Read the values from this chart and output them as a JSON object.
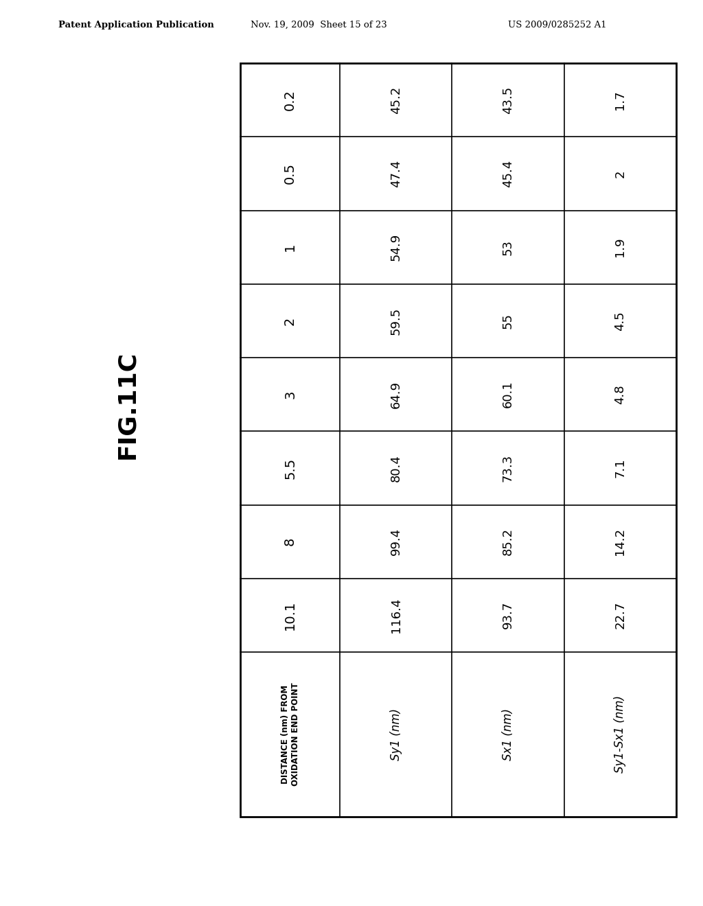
{
  "title": "FIG.11C",
  "header_text": "Patent Application Publication",
  "header_date": "Nov. 19, 2009  Sheet 15 of 23",
  "header_patent": "US 2009/0285252 A1",
  "distances": [
    "0.2",
    "0.5",
    "1",
    "2",
    "3",
    "5.5",
    "8",
    "10.1"
  ],
  "row_labels": [
    "DISTANCE (nm) FROM\nOXIDATION END POINT",
    "Sy1 (nm)",
    "Sx1 (nm)",
    "Sy1-Sx1 (nm)"
  ],
  "sy1_values": [
    "45.2",
    "47.4",
    "54.9",
    "59.5",
    "64.9",
    "80.4",
    "99.4",
    "116.4"
  ],
  "sx1_values": [
    "43.5",
    "45.4",
    "53",
    "55",
    "60.1",
    "73.3",
    "85.2",
    "93.7"
  ],
  "diff_values": [
    "1.7",
    "2",
    "1.9",
    "4.5",
    "4.8",
    "7.1",
    "14.2",
    "22.7"
  ],
  "bg_color": "#ffffff",
  "text_color": "#000000",
  "border_color": "#000000"
}
